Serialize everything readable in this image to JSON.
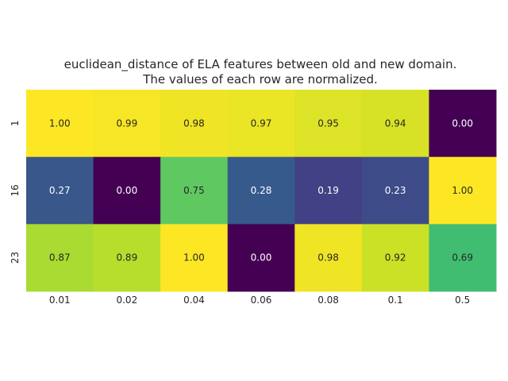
{
  "chart_data": {
    "type": "heatmap",
    "title_lines": [
      "euclidean_distance of ELA features between old and new domain.",
      "The values of each row are normalized."
    ],
    "xlabel": "",
    "ylabel": "",
    "x_categories": [
      "0.01",
      "0.02",
      "0.04",
      "0.06",
      "0.08",
      "0.1",
      "0.5"
    ],
    "y_categories": [
      "1",
      "16",
      "23"
    ],
    "values": [
      [
        1.0,
        0.99,
        0.98,
        0.97,
        0.95,
        0.94,
        0.0
      ],
      [
        0.27,
        0.0,
        0.75,
        0.28,
        0.19,
        0.23,
        1.0
      ],
      [
        0.87,
        0.89,
        1.0,
        0.0,
        0.98,
        0.92,
        0.69
      ]
    ],
    "value_labels": [
      [
        "1.00",
        "0.99",
        "0.98",
        "0.97",
        "0.95",
        "0.94",
        "0.00"
      ],
      [
        "0.27",
        "0.00",
        "0.75",
        "0.28",
        "0.19",
        "0.23",
        "1.00"
      ],
      [
        "0.87",
        "0.89",
        "1.00",
        "0.00",
        "0.98",
        "0.92",
        "0.69"
      ]
    ],
    "colormap": "viridis",
    "vmin": 0,
    "vmax": 1,
    "colorbar": false,
    "grid": false
  }
}
